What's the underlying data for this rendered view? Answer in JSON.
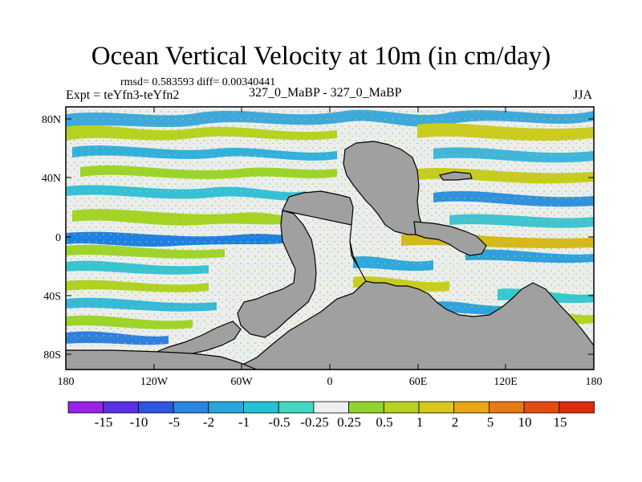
{
  "title": "Ocean Vertical Velocity at 10m (in cm/day)",
  "stats": "rmsd= 0.583593 diff= 0.00340441",
  "experiment": "Expt = teYfn3-teYfn2",
  "case": "327_0_MaBP - 327_0_MaBP",
  "season": "JJA",
  "axes": {
    "y_ticks": [
      "80N",
      "40N",
      "0",
      "40S",
      "80S"
    ],
    "x_ticks": [
      "180",
      "120W",
      "60W",
      "0",
      "60E",
      "120E",
      "180"
    ]
  },
  "colorbar": {
    "labels": [
      "-15",
      "-10",
      "-5",
      "-2",
      "-1",
      "-0.5",
      "-0.25",
      "0.25",
      "0.5",
      "1",
      "2",
      "5",
      "10",
      "15"
    ],
    "colors": [
      "#9a22e8",
      "#5b2ee8",
      "#2f55e6",
      "#2a86e0",
      "#25a8db",
      "#22c3d6",
      "#3ed9c0",
      "#f0f0f0",
      "#8fd52a",
      "#b9d21e",
      "#d8c818",
      "#e8a812",
      "#ea7a10",
      "#e84a10",
      "#e02a10"
    ]
  },
  "colors": {
    "land": "#a0a0a0",
    "neutral": "#ededed",
    "coast": "#000000"
  }
}
